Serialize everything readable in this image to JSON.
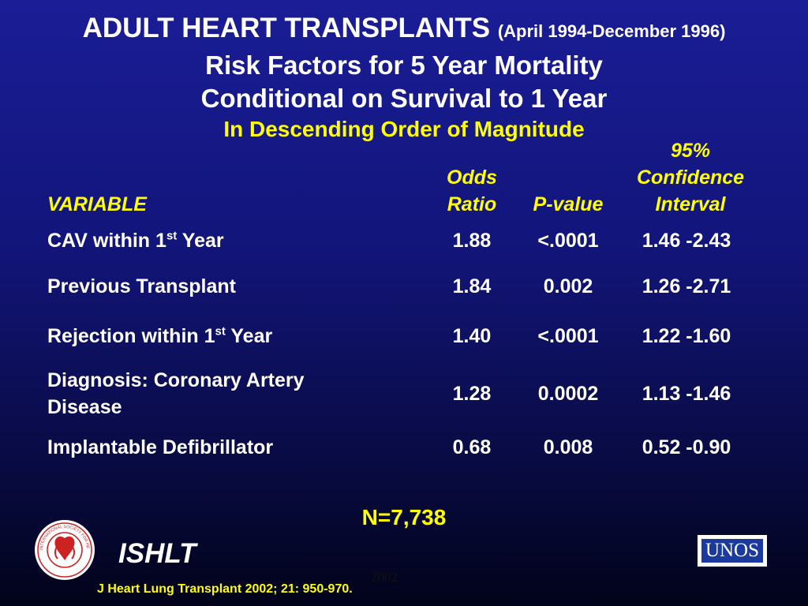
{
  "title": {
    "main": "ADULT HEART TRANSPLANTS",
    "dates": "(April 1994-December 1996)",
    "line2": "Risk Factors for 5 Year Mortality",
    "line3": "Conditional on Survival to 1 Year",
    "line4": "In Descending Order of Magnitude"
  },
  "headers": {
    "variable": "VARIABLE",
    "odds_1": "Odds",
    "odds_2": "Ratio",
    "pvalue": "P-value",
    "ci_1": "95%",
    "ci_2": "Confidence",
    "ci_3": "Interval"
  },
  "rows": [
    {
      "variable": "CAV within 1",
      "sup": "st",
      "variable_suffix": " Year",
      "odds_ratio": "1.88",
      "p_value": "<.0001",
      "ci": "1.46 -2.43"
    },
    {
      "variable": "Previous Transplant",
      "odds_ratio": "1.84",
      "p_value": "0.002",
      "ci": "1.26 -2.71"
    },
    {
      "variable": "Rejection within 1",
      "sup": "st",
      "variable_suffix": " Year",
      "odds_ratio": "1.40",
      "p_value": "<.0001",
      "ci": "1.22 -1.60"
    },
    {
      "variable_line1": "Diagnosis: Coronary Artery",
      "variable_line2": "Disease",
      "odds_ratio": "1.28",
      "p_value": "0.0002",
      "ci": "1.13 -1.46"
    },
    {
      "variable": "Implantable Defibrillator",
      "odds_ratio": "0.68",
      "p_value": "0.008",
      "ci": "0.52 -0.90"
    }
  ],
  "n_label": "N=7,738",
  "footer": {
    "org": "ISHLT",
    "unos_logo_text": "UNOS",
    "ishlt_seal_text": "INTERNATIONAL SOCIETY FOR HEART & LUNG TRANSPLANTATION",
    "year": "2002",
    "citation": "J Heart Lung Transplant 2002; 21: 950-970."
  },
  "colors": {
    "background_top": "#1a1d96",
    "background_bottom": "#02031a",
    "accent_yellow": "#ffff00",
    "text_white": "#ffffff",
    "logo_red": "#cc2222"
  }
}
